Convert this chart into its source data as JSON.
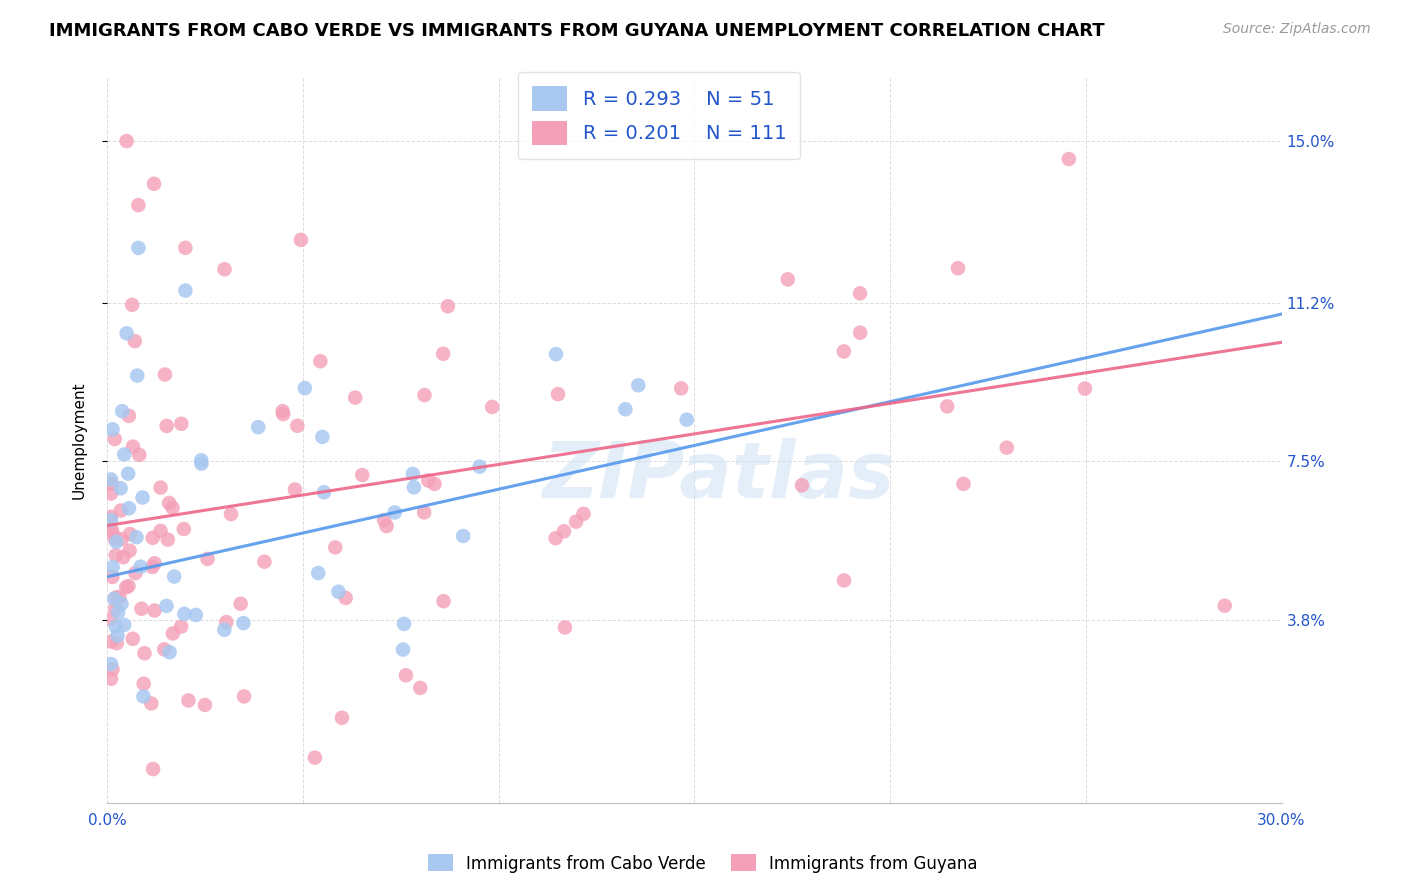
{
  "title": "IMMIGRANTS FROM CABO VERDE VS IMMIGRANTS FROM GUYANA UNEMPLOYMENT CORRELATION CHART",
  "source": "Source: ZipAtlas.com",
  "ylabel": "Unemployment",
  "xlim": [
    0.0,
    0.3
  ],
  "ylim": [
    -0.005,
    0.165
  ],
  "yticks": [
    0.038,
    0.075,
    0.112,
    0.15
  ],
  "ytick_labels": [
    "3.8%",
    "7.5%",
    "11.2%",
    "15.0%"
  ],
  "xticks": [
    0.0,
    0.05,
    0.1,
    0.15,
    0.2,
    0.25,
    0.3
  ],
  "xtick_labels": [
    "0.0%",
    "",
    "",
    "",
    "",
    "",
    "30.0%"
  ],
  "cabo_verde_R": 0.293,
  "cabo_verde_N": 51,
  "guyana_R": 0.201,
  "guyana_N": 111,
  "cabo_verde_color": "#a8c8f0",
  "guyana_color": "#f4a0b8",
  "trend_cabo_color": "#5599ee",
  "trend_guyana_color": "#ee6688",
  "watermark": "ZIPatlas",
  "background_color": "#ffffff",
  "legend_R_color": "#2255cc",
  "title_fontsize": 13,
  "source_fontsize": 10,
  "axis_label_fontsize": 11,
  "tick_fontsize": 11
}
